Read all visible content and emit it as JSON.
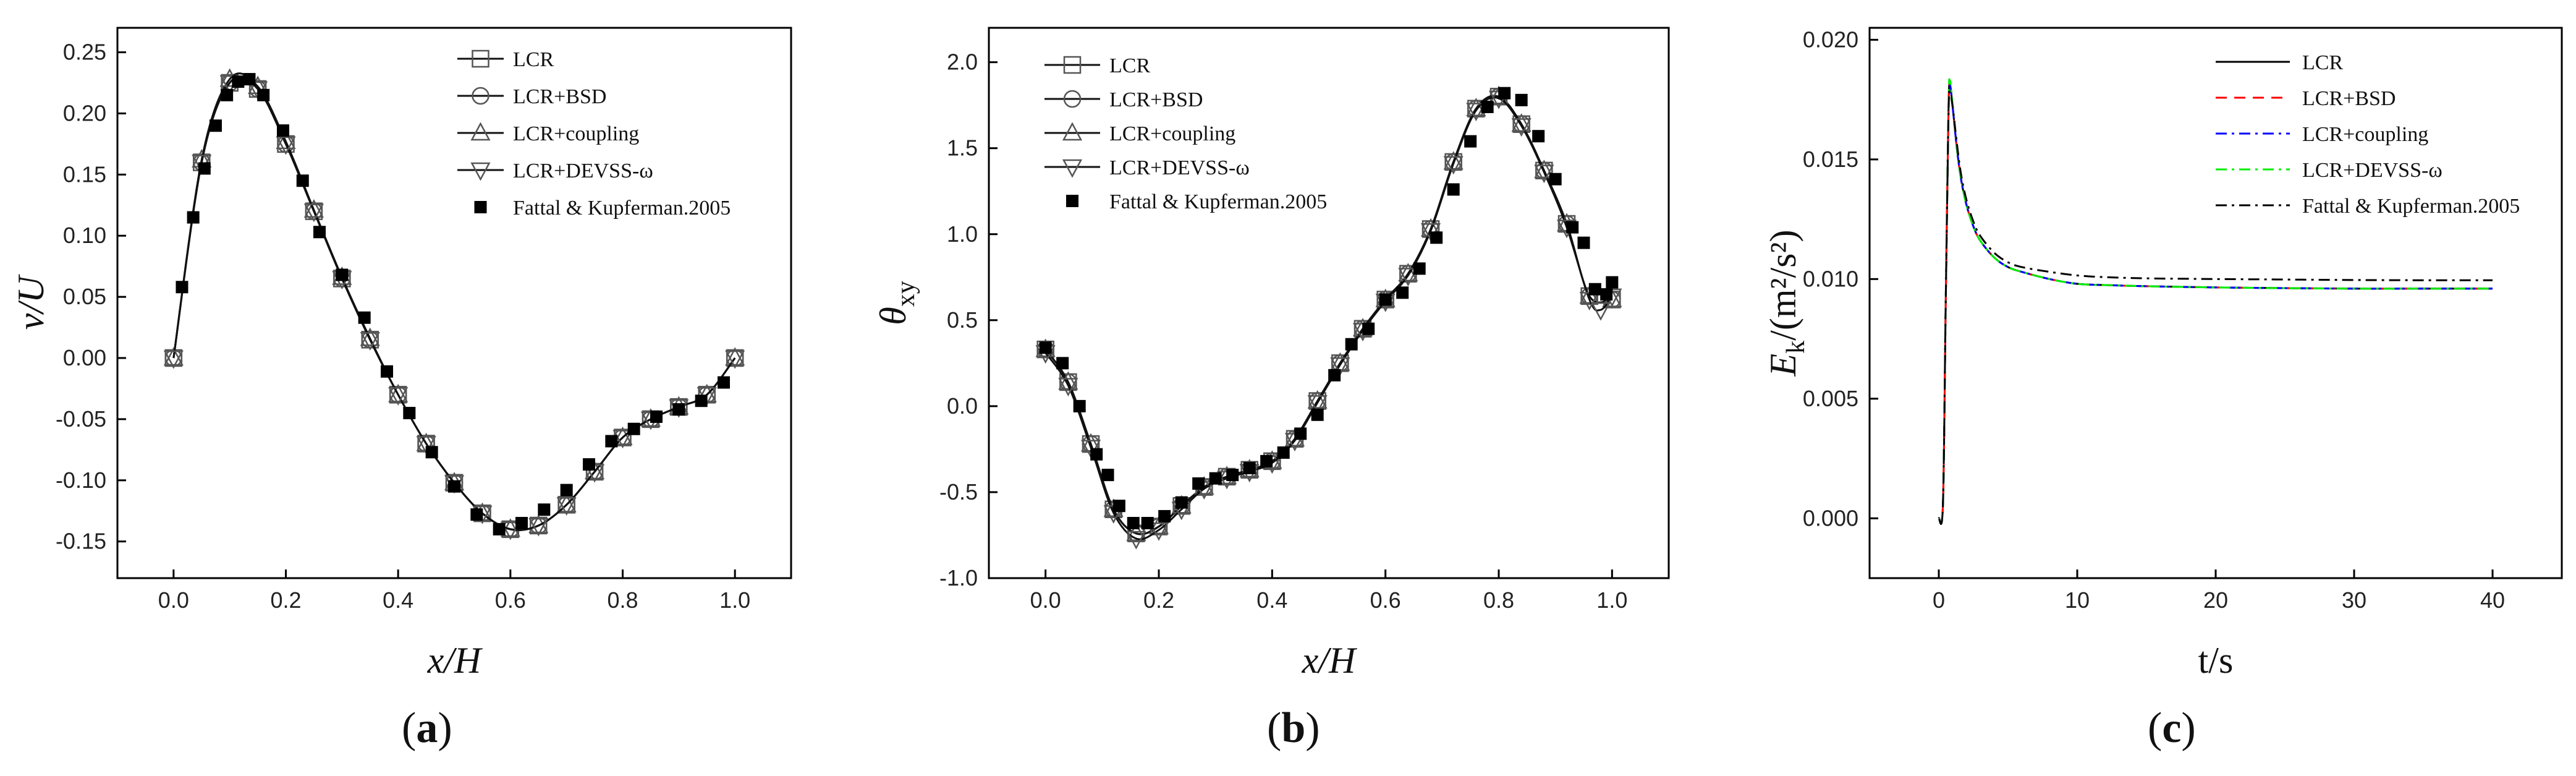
{
  "chart_data": [
    {
      "type": "line",
      "panel": "a",
      "panel_label": "a",
      "xlabel": "x/H",
      "ylabel": "v/U",
      "xlim": [
        -0.1,
        1.1
      ],
      "ylim": [
        -0.18,
        0.27
      ],
      "xticks": [
        0.0,
        0.2,
        0.4,
        0.6,
        0.8,
        1.0
      ],
      "xtick_labels": [
        "0.0",
        "0.2",
        "0.4",
        "0.6",
        "0.8",
        "1.0"
      ],
      "yticks": [
        -0.15,
        -0.1,
        -0.05,
        0.0,
        0.05,
        0.1,
        0.15,
        0.2,
        0.25
      ],
      "ytick_labels": [
        "-0.15",
        "-0.10",
        "-0.05",
        "0.00",
        "0.05",
        "0.10",
        "0.15",
        "0.20",
        "0.25"
      ],
      "legend_position": "top-right",
      "series": [
        {
          "name": "LCR",
          "marker": "square",
          "x": [
            0.0,
            0.05,
            0.1,
            0.15,
            0.2,
            0.25,
            0.3,
            0.35,
            0.4,
            0.45,
            0.5,
            0.55,
            0.6,
            0.65,
            0.7,
            0.75,
            0.8,
            0.85,
            0.9,
            0.95,
            1.0
          ],
          "y": [
            0.0,
            0.16,
            0.225,
            0.22,
            0.175,
            0.12,
            0.065,
            0.015,
            -0.03,
            -0.07,
            -0.102,
            -0.127,
            -0.14,
            -0.137,
            -0.12,
            -0.093,
            -0.065,
            -0.05,
            -0.04,
            -0.03,
            0.0
          ]
        },
        {
          "name": "LCR+BSD",
          "marker": "circle",
          "x": [
            0.0,
            0.05,
            0.1,
            0.15,
            0.2,
            0.25,
            0.3,
            0.35,
            0.4,
            0.45,
            0.5,
            0.55,
            0.6,
            0.65,
            0.7,
            0.75,
            0.8,
            0.85,
            0.9,
            0.95,
            1.0
          ],
          "y": [
            0.0,
            0.16,
            0.225,
            0.22,
            0.175,
            0.12,
            0.065,
            0.015,
            -0.03,
            -0.07,
            -0.102,
            -0.127,
            -0.14,
            -0.137,
            -0.12,
            -0.093,
            -0.065,
            -0.05,
            -0.04,
            -0.03,
            0.0
          ]
        },
        {
          "name": "LCR+coupling",
          "marker": "triangle-up",
          "x": [
            0.0,
            0.05,
            0.1,
            0.15,
            0.2,
            0.25,
            0.3,
            0.35,
            0.4,
            0.45,
            0.5,
            0.55,
            0.6,
            0.65,
            0.7,
            0.75,
            0.8,
            0.85,
            0.9,
            0.95,
            1.0
          ],
          "y": [
            0.0,
            0.162,
            0.228,
            0.222,
            0.177,
            0.121,
            0.066,
            0.016,
            -0.03,
            -0.07,
            -0.102,
            -0.127,
            -0.14,
            -0.137,
            -0.12,
            -0.093,
            -0.065,
            -0.05,
            -0.04,
            -0.03,
            0.0
          ]
        },
        {
          "name": "LCR+DEVSS-ω",
          "marker": "triangle-down",
          "x": [
            0.0,
            0.05,
            0.1,
            0.15,
            0.2,
            0.25,
            0.3,
            0.35,
            0.4,
            0.45,
            0.5,
            0.55,
            0.6,
            0.65,
            0.7,
            0.75,
            0.8,
            0.85,
            0.9,
            0.95,
            1.0
          ],
          "y": [
            0.0,
            0.16,
            0.225,
            0.22,
            0.175,
            0.12,
            0.065,
            0.015,
            -0.03,
            -0.07,
            -0.102,
            -0.127,
            -0.14,
            -0.137,
            -0.12,
            -0.093,
            -0.065,
            -0.05,
            -0.04,
            -0.03,
            0.0
          ]
        },
        {
          "name": "Fattal & Kupferman.2005",
          "marker": "filled-square",
          "x": [
            0.015,
            0.035,
            0.055,
            0.075,
            0.095,
            0.115,
            0.135,
            0.16,
            0.195,
            0.23,
            0.26,
            0.3,
            0.34,
            0.38,
            0.42,
            0.46,
            0.5,
            0.54,
            0.58,
            0.62,
            0.66,
            0.7,
            0.74,
            0.78,
            0.82,
            0.86,
            0.9,
            0.94,
            0.98
          ],
          "y": [
            0.058,
            0.115,
            0.155,
            0.19,
            0.215,
            0.226,
            0.228,
            0.215,
            0.186,
            0.145,
            0.103,
            0.068,
            0.033,
            -0.011,
            -0.045,
            -0.077,
            -0.105,
            -0.128,
            -0.14,
            -0.135,
            -0.124,
            -0.108,
            -0.087,
            -0.068,
            -0.058,
            -0.048,
            -0.042,
            -0.035,
            -0.02
          ]
        }
      ]
    },
    {
      "type": "line",
      "panel": "b",
      "panel_label": "b",
      "xlabel": "x/H",
      "ylabel": "θ",
      "ylabel_sub": "xy",
      "xlim": [
        -0.1,
        1.1
      ],
      "ylim": [
        -1.0,
        2.2
      ],
      "xticks": [
        0.0,
        0.2,
        0.4,
        0.6,
        0.8,
        1.0
      ],
      "xtick_labels": [
        "0.0",
        "0.2",
        "0.4",
        "0.6",
        "0.8",
        "1.0"
      ],
      "yticks": [
        -1.0,
        -0.5,
        0.0,
        0.5,
        1.0,
        1.5,
        2.0
      ],
      "ytick_labels": [
        "-1.0",
        "-0.5",
        "0.0",
        "0.5",
        "1.0",
        "1.5",
        "2.0"
      ],
      "legend_position": "top-left",
      "series": [
        {
          "name": "LCR",
          "marker": "square",
          "x": [
            0.0,
            0.04,
            0.08,
            0.12,
            0.16,
            0.2,
            0.24,
            0.28,
            0.32,
            0.36,
            0.4,
            0.44,
            0.48,
            0.52,
            0.56,
            0.6,
            0.64,
            0.68,
            0.72,
            0.76,
            0.8,
            0.84,
            0.88,
            0.92,
            0.96,
            1.0
          ],
          "y": [
            0.33,
            0.14,
            -0.22,
            -0.6,
            -0.74,
            -0.7,
            -0.58,
            -0.47,
            -0.41,
            -0.37,
            -0.32,
            -0.19,
            0.03,
            0.25,
            0.45,
            0.62,
            0.77,
            1.03,
            1.42,
            1.73,
            1.8,
            1.64,
            1.37,
            1.06,
            0.64,
            0.62
          ]
        },
        {
          "name": "LCR+BSD",
          "marker": "circle",
          "x": [
            0.0,
            0.04,
            0.08,
            0.12,
            0.16,
            0.2,
            0.24,
            0.28,
            0.32,
            0.36,
            0.4,
            0.44,
            0.48,
            0.52,
            0.56,
            0.6,
            0.64,
            0.68,
            0.72,
            0.76,
            0.8,
            0.84,
            0.88,
            0.92,
            0.96,
            1.0
          ],
          "y": [
            0.33,
            0.14,
            -0.22,
            -0.6,
            -0.74,
            -0.7,
            -0.58,
            -0.47,
            -0.41,
            -0.37,
            -0.32,
            -0.19,
            0.03,
            0.25,
            0.45,
            0.62,
            0.77,
            1.03,
            1.42,
            1.73,
            1.8,
            1.64,
            1.37,
            1.06,
            0.64,
            0.62
          ]
        },
        {
          "name": "LCR+coupling",
          "marker": "triangle-up",
          "x": [
            0.0,
            0.04,
            0.08,
            0.12,
            0.16,
            0.2,
            0.24,
            0.28,
            0.32,
            0.36,
            0.4,
            0.44,
            0.48,
            0.52,
            0.56,
            0.6,
            0.64,
            0.68,
            0.72,
            0.76,
            0.8,
            0.84,
            0.88,
            0.92,
            0.96,
            1.0
          ],
          "y": [
            0.33,
            0.14,
            -0.22,
            -0.6,
            -0.74,
            -0.7,
            -0.58,
            -0.47,
            -0.41,
            -0.37,
            -0.32,
            -0.19,
            0.03,
            0.25,
            0.45,
            0.62,
            0.77,
            1.03,
            1.42,
            1.73,
            1.8,
            1.64,
            1.37,
            1.06,
            0.64,
            0.62
          ]
        },
        {
          "name": "LCR+DEVSS-ω",
          "marker": "triangle-down",
          "x": [
            0.0,
            0.04,
            0.08,
            0.12,
            0.16,
            0.2,
            0.24,
            0.28,
            0.32,
            0.36,
            0.4,
            0.44,
            0.48,
            0.52,
            0.56,
            0.6,
            0.64,
            0.68,
            0.72,
            0.76,
            0.8,
            0.84,
            0.88,
            0.92,
            0.96,
            0.98,
            1.0
          ],
          "y": [
            0.31,
            0.12,
            -0.24,
            -0.62,
            -0.77,
            -0.72,
            -0.6,
            -0.48,
            -0.42,
            -0.38,
            -0.33,
            -0.2,
            0.02,
            0.24,
            0.44,
            0.61,
            0.76,
            1.02,
            1.41,
            1.72,
            1.79,
            1.63,
            1.36,
            1.04,
            0.62,
            0.56,
            0.64
          ]
        },
        {
          "name": "Fattal & Kupferman.2005",
          "marker": "filled-square",
          "x": [
            0.0,
            0.03,
            0.06,
            0.09,
            0.11,
            0.13,
            0.155,
            0.18,
            0.21,
            0.24,
            0.27,
            0.3,
            0.33,
            0.36,
            0.39,
            0.42,
            0.45,
            0.48,
            0.51,
            0.54,
            0.57,
            0.6,
            0.63,
            0.66,
            0.69,
            0.72,
            0.75,
            0.78,
            0.81,
            0.84,
            0.87,
            0.9,
            0.93,
            0.95,
            0.97,
            0.99,
            1.0
          ],
          "y": [
            0.34,
            0.25,
            0.0,
            -0.28,
            -0.4,
            -0.58,
            -0.68,
            -0.68,
            -0.64,
            -0.56,
            -0.45,
            -0.42,
            -0.4,
            -0.36,
            -0.32,
            -0.27,
            -0.16,
            -0.05,
            0.18,
            0.36,
            0.45,
            0.62,
            0.66,
            0.8,
            0.98,
            1.26,
            1.54,
            1.74,
            1.82,
            1.78,
            1.57,
            1.32,
            1.04,
            0.95,
            0.68,
            0.65,
            0.72
          ]
        }
      ]
    },
    {
      "type": "line",
      "panel": "c",
      "panel_label": "c",
      "xlabel": "t/s",
      "ylabel": "E",
      "ylabel_sub": "k",
      "ylabel_units": "/(m²/s²)",
      "xlim": [
        -5,
        45
      ],
      "ylim": [
        -0.0025,
        0.0205
      ],
      "xticks": [
        0,
        10,
        20,
        30,
        40
      ],
      "xtick_labels": [
        "0",
        "10",
        "20",
        "30",
        "40"
      ],
      "yticks": [
        0.0,
        0.005,
        0.01,
        0.015,
        0.02
      ],
      "ytick_labels": [
        "0.000",
        "0.005",
        "0.010",
        "0.015",
        "0.020"
      ],
      "legend_position": "top-right",
      "series": [
        {
          "name": "LCR",
          "color": "#000000",
          "dash": "solid",
          "x": [
            0,
            0.3,
            0.5,
            0.7,
            0.8,
            1.0,
            1.3,
            1.6,
            2.0,
            2.5,
            3,
            4,
            5,
            6,
            8,
            10,
            12,
            15,
            20,
            25,
            30,
            35,
            40
          ],
          "y": [
            0.0,
            0.0006,
            0.009,
            0.017,
            0.0181,
            0.0172,
            0.0155,
            0.0142,
            0.0131,
            0.0122,
            0.0116,
            0.0109,
            0.0105,
            0.0103,
            0.01,
            0.0098,
            0.00975,
            0.0097,
            0.00965,
            0.00962,
            0.0096,
            0.0096,
            0.0096
          ]
        },
        {
          "name": "LCR+BSD",
          "color": "#ff0000",
          "dash": "dash",
          "x": [
            0,
            0.3,
            0.5,
            0.7,
            0.8,
            1.0,
            1.3,
            1.6,
            2.0,
            2.5,
            3,
            4,
            5,
            6,
            8,
            10,
            12,
            15,
            20,
            25,
            30,
            35,
            40
          ],
          "y": [
            0.0,
            0.0006,
            0.009,
            0.017,
            0.0181,
            0.0172,
            0.0155,
            0.0142,
            0.0131,
            0.0122,
            0.0116,
            0.0109,
            0.0105,
            0.0103,
            0.01,
            0.0098,
            0.00975,
            0.0097,
            0.00965,
            0.00962,
            0.0096,
            0.0096,
            0.0096
          ]
        },
        {
          "name": "LCR+coupling",
          "color": "#0000ff",
          "dash": "dash-dot",
          "x": [
            0,
            0.3,
            0.5,
            0.7,
            0.8,
            1.0,
            1.3,
            1.6,
            2.0,
            2.5,
            3,
            4,
            5,
            6,
            8,
            10,
            12,
            15,
            20,
            25,
            30,
            35,
            40
          ],
          "y": [
            0.0,
            0.0006,
            0.009,
            0.017,
            0.0181,
            0.0172,
            0.0155,
            0.0142,
            0.0131,
            0.0122,
            0.0116,
            0.0109,
            0.0105,
            0.0103,
            0.01,
            0.0098,
            0.00975,
            0.0097,
            0.00965,
            0.00962,
            0.0096,
            0.0096,
            0.0096
          ]
        },
        {
          "name": "LCR+DEVSS-ω",
          "color": "#00ee00",
          "dash": "dash-dot",
          "x": [
            0,
            0.3,
            0.5,
            0.7,
            0.8,
            1.0,
            1.3,
            1.6,
            2.0,
            2.5,
            3,
            4,
            5,
            6,
            8,
            10,
            12,
            15,
            20,
            25,
            30,
            35,
            40
          ],
          "y": [
            0.0,
            0.0006,
            0.009,
            0.0172,
            0.0183,
            0.0173,
            0.0156,
            0.0142,
            0.0131,
            0.0122,
            0.0116,
            0.0109,
            0.0105,
            0.0103,
            0.01,
            0.0098,
            0.00975,
            0.0097,
            0.00965,
            0.00962,
            0.0096,
            0.0096,
            0.0096
          ]
        },
        {
          "name": "Fattal & Kupferman.2005",
          "color": "#000000",
          "dash": "dash-dot",
          "x": [
            0,
            0.3,
            0.5,
            0.7,
            0.8,
            1.0,
            1.3,
            1.6,
            2.0,
            2.5,
            3,
            4,
            5,
            6,
            8,
            10,
            12,
            15,
            20,
            25,
            30,
            35,
            40
          ],
          "y": [
            0.0,
            0.0006,
            0.009,
            0.0168,
            0.0178,
            0.0172,
            0.0157,
            0.0144,
            0.0133,
            0.0124,
            0.0118,
            0.0111,
            0.0107,
            0.0105,
            0.0103,
            0.01015,
            0.01008,
            0.01003,
            0.01,
            0.00998,
            0.00996,
            0.00995,
            0.00995
          ]
        }
      ]
    }
  ]
}
